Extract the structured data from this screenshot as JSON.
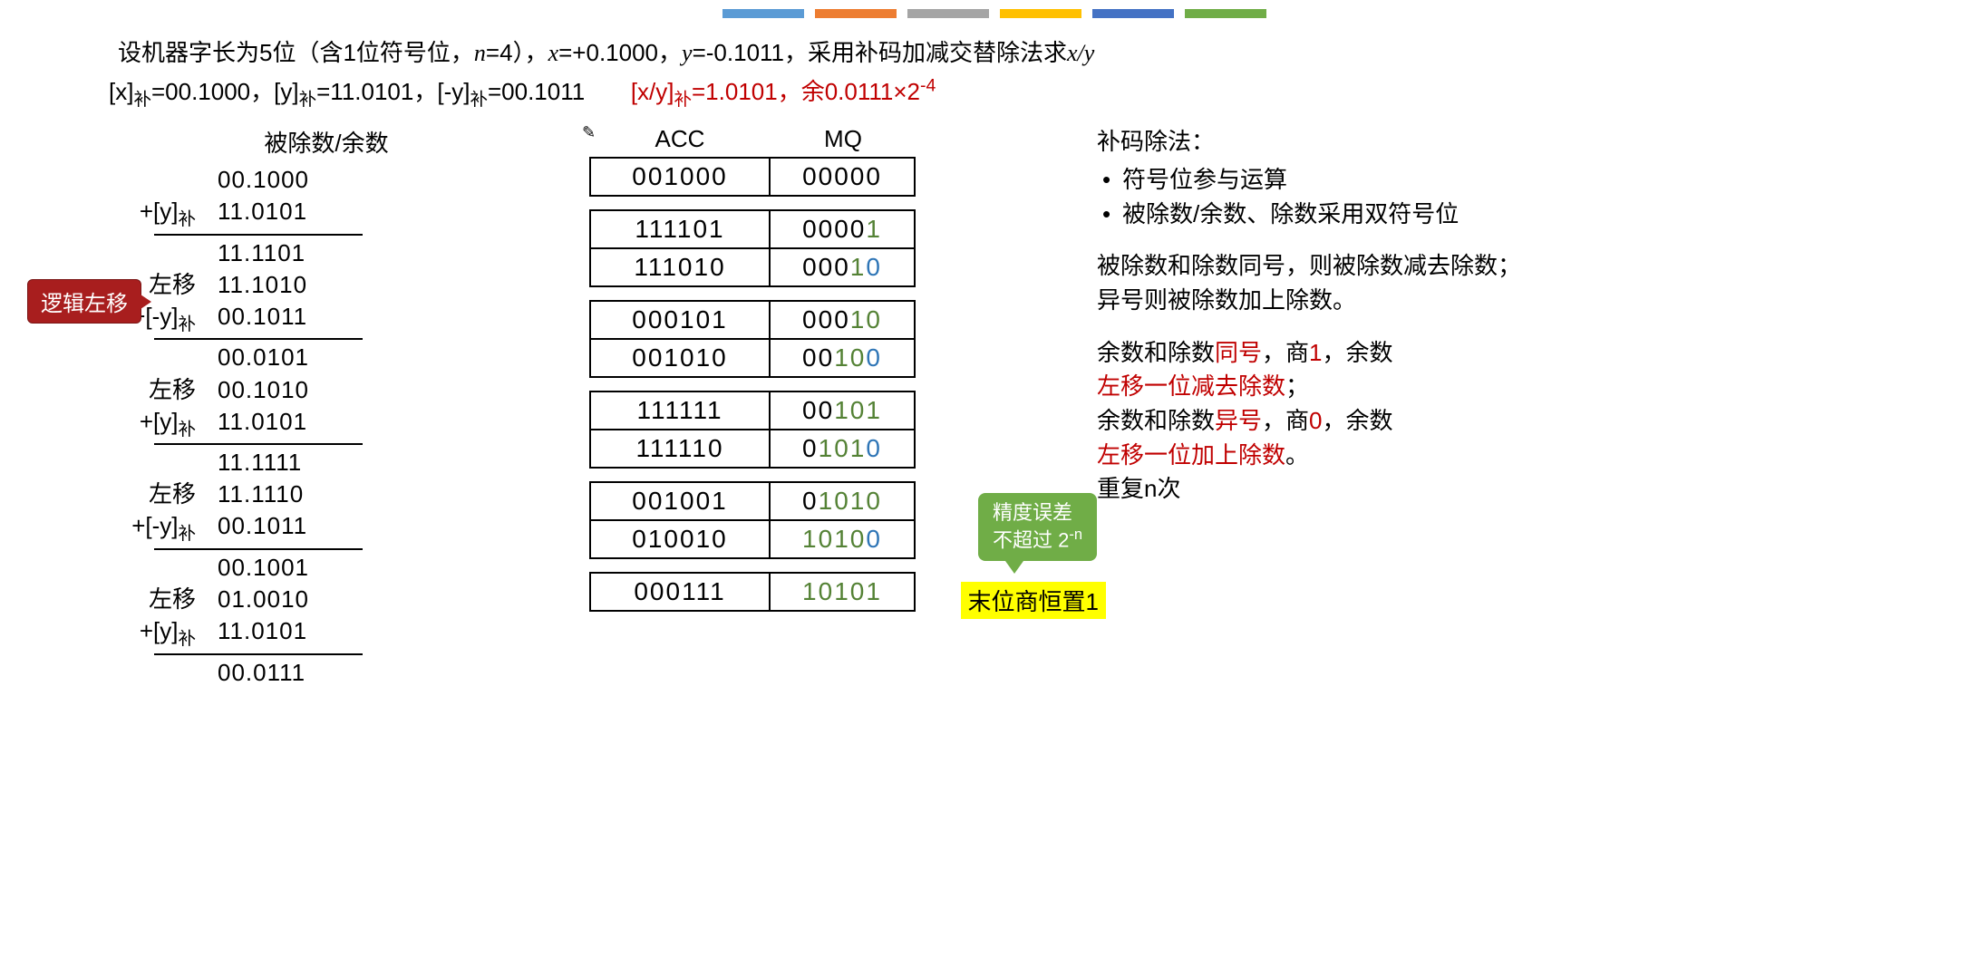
{
  "color_bar": [
    "#5b9bd5",
    "#ed7d31",
    "#a5a5a5",
    "#ffc000",
    "#4472c4",
    "#70ad47"
  ],
  "header": {
    "line1_pre": "设机器字长为5位（含1位符号位，",
    "line1_n": "n",
    "line1_mid": "=4），",
    "line1_x": "x",
    "line1_xeq": "=+0.1000，",
    "line1_y": "y",
    "line1_yeq": "=-0.1011，采用补码加减交替除法求",
    "line1_xy": "x/y",
    "line2_x": "[x]",
    "line2_bu": "补",
    "line2_xv": "=00.1000，",
    "line2_y": "[y]",
    "line2_yv": "=11.0101，",
    "line2_ny": "[-y]",
    "line2_nyv": "=00.1011",
    "result_xy": "[x/y]",
    "result_v": "=1.0101，余0.0111×2",
    "result_exp": "-4"
  },
  "calc": {
    "title": "被除数/余数",
    "badge": "逻辑左移",
    "rows": [
      {
        "label": "",
        "val": "00.1000"
      },
      {
        "label": "+[y]补",
        "val": "11.0101"
      },
      {
        "hr": true
      },
      {
        "label": "",
        "val": "11.1101"
      },
      {
        "label": "左移",
        "val": "11.1010"
      },
      {
        "label": "+[-y]补",
        "val": "00.1011"
      },
      {
        "hr": true
      },
      {
        "label": "",
        "val": "00.0101"
      },
      {
        "label": "左移",
        "val": "00.1010"
      },
      {
        "label": "+[y]补",
        "val": "11.0101"
      },
      {
        "hr": true
      },
      {
        "label": "",
        "val": "11.1111"
      },
      {
        "label": "左移",
        "val": "11.1110"
      },
      {
        "label": "+[-y]补",
        "val": "00.1011"
      },
      {
        "hr": true
      },
      {
        "label": "",
        "val": "00.1001"
      },
      {
        "label": "左移",
        "val": "01.0010"
      },
      {
        "label": "+[y]补",
        "val": "11.0101"
      },
      {
        "hr": true
      },
      {
        "label": "",
        "val": "00.0111"
      }
    ]
  },
  "reg": {
    "acc_label": "ACC",
    "mq_label": "MQ",
    "groups": [
      [
        {
          "acc": "001000",
          "mq": [
            {
              "t": "00000"
            }
          ]
        }
      ],
      [
        {
          "acc": "111101",
          "mq": [
            {
              "t": "0000"
            },
            {
              "t": "1",
              "c": "g"
            }
          ]
        },
        {
          "acc": "111010",
          "mq": [
            {
              "t": "000"
            },
            {
              "t": "1",
              "c": "g"
            },
            {
              "t": "0",
              "c": "b"
            }
          ]
        }
      ],
      [
        {
          "acc": "000101",
          "mq": [
            {
              "t": "00"
            },
            {
              "t": "0"
            },
            {
              "t": "1",
              "c": "g"
            },
            {
              "t": "0",
              "c": "g"
            }
          ]
        },
        {
          "acc": "001010",
          "mq": [
            {
              "t": "00"
            },
            {
              "t": "1",
              "c": "g"
            },
            {
              "t": "0",
              "c": "g"
            },
            {
              "t": "0",
              "c": "b"
            }
          ]
        }
      ],
      [
        {
          "acc": "111111",
          "mq": [
            {
              "t": "0"
            },
            {
              "t": "0"
            },
            {
              "t": "1",
              "c": "g"
            },
            {
              "t": "0",
              "c": "g"
            },
            {
              "t": "1",
              "c": "g"
            }
          ]
        },
        {
          "acc": "111110",
          "mq": [
            {
              "t": "0"
            },
            {
              "t": "1",
              "c": "g"
            },
            {
              "t": "0",
              "c": "g"
            },
            {
              "t": "1",
              "c": "g"
            },
            {
              "t": "0",
              "c": "b"
            }
          ]
        }
      ],
      [
        {
          "acc": "001001",
          "mq": [
            {
              "t": "0"
            },
            {
              "t": "1",
              "c": "g"
            },
            {
              "t": "0",
              "c": "g"
            },
            {
              "t": "1",
              "c": "g"
            },
            {
              "t": "0",
              "c": "g"
            }
          ]
        },
        {
          "acc": "010010",
          "mq": [
            {
              "t": "1",
              "c": "g"
            },
            {
              "t": "0",
              "c": "g"
            },
            {
              "t": "1",
              "c": "g"
            },
            {
              "t": "0",
              "c": "g"
            },
            {
              "t": "0",
              "c": "b"
            }
          ]
        }
      ],
      [
        {
          "acc": "000111",
          "mq": [
            {
              "t": "1",
              "c": "g"
            },
            {
              "t": "0",
              "c": "g"
            },
            {
              "t": "1",
              "c": "g"
            },
            {
              "t": "0",
              "c": "g"
            },
            {
              "t": "1",
              "c": "g"
            }
          ]
        }
      ]
    ],
    "green_badge_l1": "精度误差",
    "green_badge_l2": "不超过 2",
    "green_badge_exp": "-n",
    "yellow": "末位商恒置1"
  },
  "notes": {
    "title": "补码除法：",
    "b1": "符号位参与运算",
    "b2": "被除数/余数、除数采用双符号位",
    "p1": "被除数和除数同号，则被除数减去除数；",
    "p1b": "异号则被除数加上除数。",
    "p2a": "余数和除数",
    "p2_same": "同号",
    "p2b": "，商",
    "p2_1": "1",
    "p2c": "，余数",
    "p2_shift": "左移一位减去除数",
    "p2d": "；",
    "p3a": "余数和除数",
    "p3_diff": "异号",
    "p3b": "，商",
    "p3_0": "0",
    "p3c": "，余数",
    "p3_shift": "左移一位加上除数",
    "p3d": "。",
    "p4": "重复n次"
  }
}
